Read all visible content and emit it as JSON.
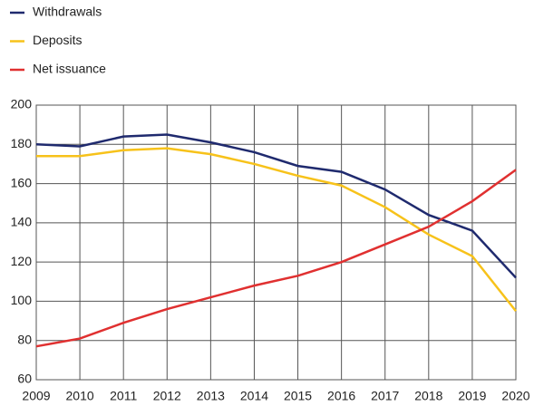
{
  "chart_data": {
    "type": "line",
    "x": [
      "2009",
      "2010",
      "2011",
      "2012",
      "2013",
      "2014",
      "2015",
      "2016",
      "2017",
      "2018",
      "2019",
      "2020"
    ],
    "series": [
      {
        "name": "Withdrawals",
        "color": "#1f2a6e",
        "values": [
          180,
          179,
          184,
          185,
          181,
          176,
          169,
          166,
          157,
          144,
          136,
          112
        ]
      },
      {
        "name": "Deposits",
        "color": "#f7c21a",
        "values": [
          174,
          174,
          177,
          178,
          175,
          170,
          164,
          159,
          148,
          134,
          123,
          95
        ]
      },
      {
        "name": "Net issuance",
        "color": "#e03030",
        "values": [
          77,
          81,
          89,
          96,
          102,
          108,
          113,
          120,
          129,
          138,
          151,
          167
        ]
      }
    ],
    "ylim": [
      60,
      200
    ],
    "yticks": [
      60,
      80,
      100,
      120,
      140,
      160,
      180,
      200
    ],
    "grid": true,
    "legend": "top-left"
  }
}
